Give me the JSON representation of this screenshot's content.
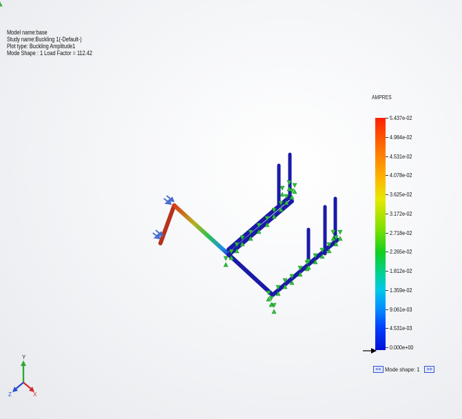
{
  "header": {
    "model_name": "Model name:base",
    "study_name": "Study name:Buckling 1(-Default-)",
    "plot_type": "Plot type: Buckling Amplitude1",
    "mode_shape": "Mode Shape : 1  Load Factor = 112.42"
  },
  "legend": {
    "title": "AMPRES",
    "ticks": [
      "5.437e-02",
      "4.984e-02",
      "4.531e-02",
      "4.078e-02",
      "3.625e-02",
      "3.172e-02",
      "2.718e-02",
      "2.265e-02",
      "1.812e-02",
      "1.359e-02",
      "9.061e-03",
      "4.531e-03",
      "0.000e+00"
    ],
    "colors": {
      "max": "#ff2000",
      "mid": "#10d020",
      "min": "#0010d8"
    }
  },
  "mode_control": {
    "prev_label": "<<",
    "label": "Mode shape: 1",
    "next_label": ">>"
  },
  "triad": {
    "x_label": "X",
    "y_label": "Y",
    "z_label": "Z"
  },
  "icons": {
    "load_arrows": "arrow-load-icon",
    "fixture": "fixture-arrow-icon",
    "triad": "coordinate-triad-icon"
  }
}
